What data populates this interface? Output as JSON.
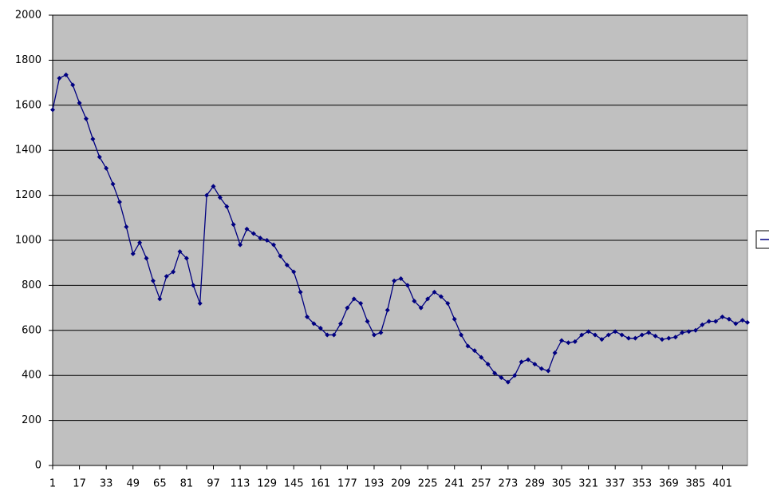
{
  "chart_data": {
    "type": "line",
    "x": [
      1,
      5,
      9,
      13,
      17,
      21,
      25,
      29,
      33,
      37,
      41,
      45,
      49,
      53,
      57,
      61,
      65,
      69,
      73,
      77,
      81,
      85,
      89,
      93,
      97,
      101,
      105,
      109,
      113,
      117,
      121,
      125,
      129,
      133,
      137,
      141,
      145,
      149,
      153,
      157,
      161,
      165,
      169,
      173,
      177,
      181,
      185,
      189,
      193,
      197,
      201,
      205,
      209,
      213,
      217,
      221,
      225,
      229,
      233,
      237,
      241,
      245,
      249,
      253,
      257,
      261,
      265,
      269,
      273,
      277,
      281,
      285,
      289,
      293,
      297,
      301,
      305,
      309,
      313,
      317,
      321,
      325,
      329,
      333,
      337,
      341,
      345,
      349,
      353,
      357,
      361,
      365,
      369,
      373,
      377,
      381,
      385,
      389,
      393,
      397,
      401,
      405,
      409,
      413,
      416
    ],
    "series": [
      {
        "color": "#000080",
        "values": [
          1580,
          1720,
          1735,
          1690,
          1610,
          1540,
          1450,
          1370,
          1320,
          1250,
          1170,
          1060,
          940,
          990,
          920,
          820,
          740,
          840,
          860,
          950,
          920,
          800,
          720,
          1200,
          1240,
          1190,
          1150,
          1070,
          980,
          1050,
          1030,
          1010,
          1000,
          980,
          930,
          890,
          860,
          770,
          660,
          630,
          610,
          580,
          580,
          630,
          700,
          740,
          720,
          640,
          580,
          590,
          690,
          820,
          830,
          800,
          730,
          700,
          740,
          770,
          750,
          720,
          650,
          580,
          530,
          510,
          480,
          450,
          410,
          390,
          370,
          400,
          460,
          470,
          450,
          430,
          420,
          500,
          555,
          545,
          550,
          580,
          595,
          580,
          560,
          580,
          595,
          580,
          565,
          565,
          580,
          590,
          575,
          560,
          565,
          570,
          590,
          595,
          600,
          625,
          640,
          640,
          660,
          650,
          630,
          645,
          635
        ]
      }
    ],
    "xlim": [
      1,
      416
    ],
    "xticks": [
      1,
      17,
      33,
      49,
      65,
      81,
      97,
      113,
      129,
      145,
      161,
      177,
      193,
      209,
      225,
      241,
      257,
      273,
      289,
      305,
      321,
      337,
      353,
      369,
      385,
      401
    ],
    "ylim": [
      0,
      2000
    ],
    "yticks": [
      0,
      200,
      400,
      600,
      800,
      1000,
      1200,
      1400,
      1600,
      1800,
      2000
    ],
    "grid": true
  }
}
